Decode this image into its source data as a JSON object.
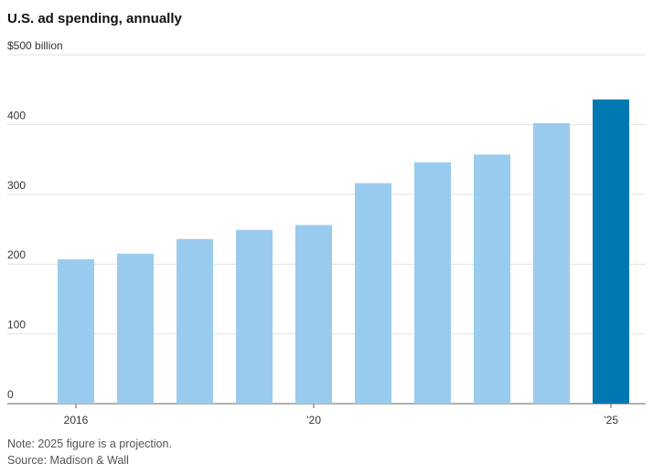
{
  "chart_data": {
    "type": "bar",
    "title": "U.S. ad spending, annually",
    "categories": [
      "2016",
      null,
      null,
      null,
      "’20",
      null,
      null,
      null,
      null,
      "’25"
    ],
    "values": [
      207,
      215,
      236,
      249,
      256,
      316,
      346,
      357,
      402,
      436
    ],
    "colors": [
      "#99cbee",
      "#99cbee",
      "#99cbee",
      "#99cbee",
      "#99cbee",
      "#99cbee",
      "#99cbee",
      "#99cbee",
      "#99cbee",
      "#0077b0"
    ],
    "ylim": [
      0,
      500
    ],
    "yticks": [
      0,
      100,
      200,
      300,
      400,
      {
        "value": 500,
        "label": "$500 billion"
      }
    ],
    "grid": true,
    "note": "Note: 2025 figure is a projection.",
    "source": "Source: Madison & Wall"
  }
}
